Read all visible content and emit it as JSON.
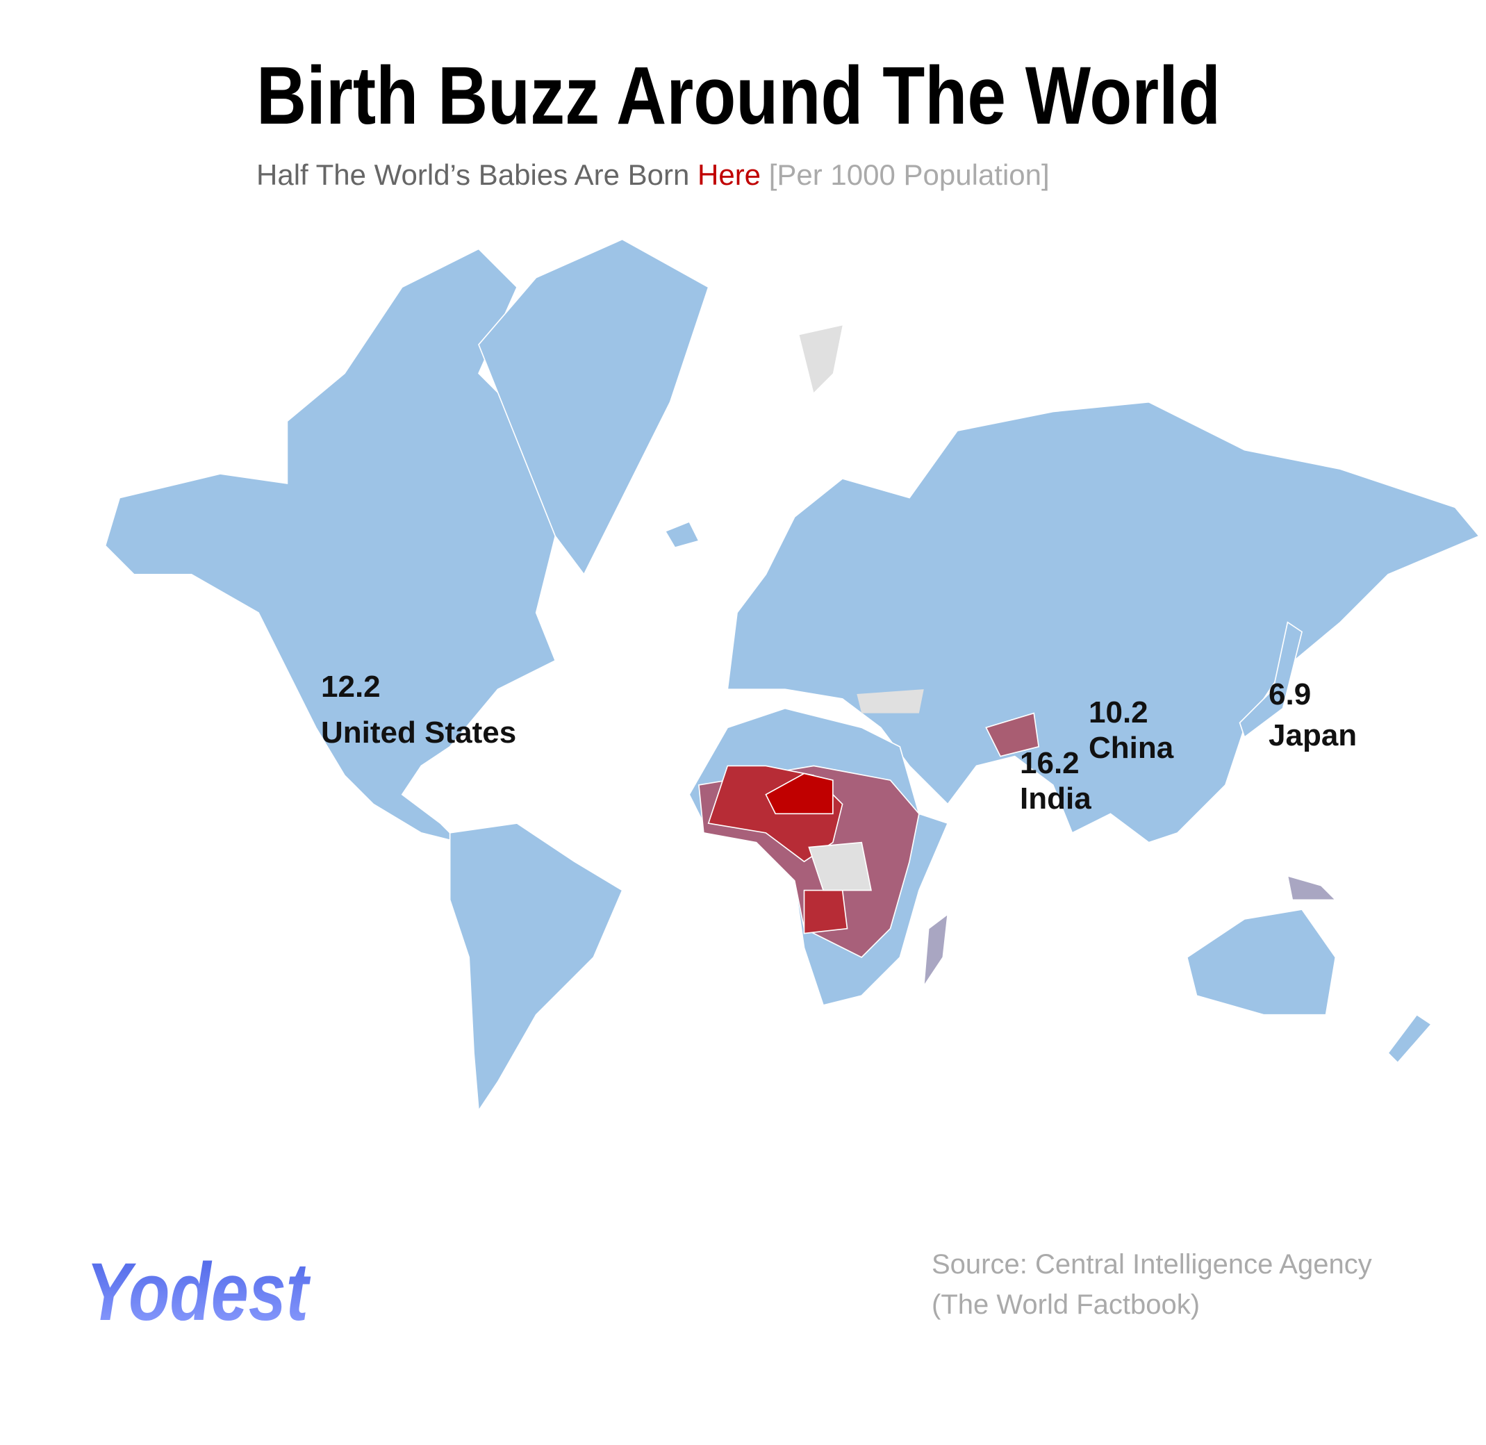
{
  "header": {
    "title": "Birth Buzz Around The World",
    "subtitle": {
      "lead": "Half The World’s Babies Are Born",
      "highlight": "Here",
      "unit": "[Per 1000 Population]"
    }
  },
  "labels": [
    {
      "value": "12.2",
      "name": "United States"
    },
    {
      "value": "10.2",
      "name": "China"
    },
    {
      "value": "16.2",
      "name": "India"
    },
    {
      "value": "6.9",
      "name": "Japan"
    }
  ],
  "source": [
    "Source: Central Intelligence Agency",
    "(The World Factbook)"
  ],
  "logo": "Yodest"
}
